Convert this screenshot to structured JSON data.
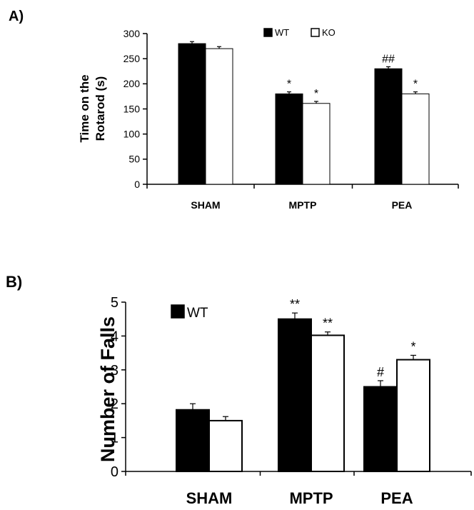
{
  "chart_data": [
    {
      "type": "bar",
      "panel_label": "A)",
      "categories": [
        "SHAM",
        "MPTP",
        "PEA"
      ],
      "series": [
        {
          "name": "WT",
          "color": "#000000",
          "values": [
            280,
            180,
            230
          ],
          "errors": [
            4,
            4,
            4
          ],
          "annotations": [
            "",
            "*",
            "##"
          ]
        },
        {
          "name": "KO",
          "color": "#ffffff",
          "values": [
            270,
            161,
            180
          ],
          "errors": [
            4,
            4,
            4
          ],
          "annotations": [
            "",
            "*",
            "*"
          ]
        }
      ],
      "ylabel_lines": [
        "Time on the",
        "Rotarod (s)"
      ],
      "ylim": [
        0,
        300
      ],
      "yticks": [
        0,
        50,
        100,
        150,
        200,
        250,
        300
      ],
      "grid": false,
      "legend_position": "top-center"
    },
    {
      "type": "bar",
      "panel_label": "B)",
      "categories": [
        "SHAM",
        "MPTP",
        "PEA"
      ],
      "series": [
        {
          "name": "WT",
          "color": "#000000",
          "values": [
            1.82,
            4.5,
            2.5
          ],
          "errors": [
            0.18,
            0.18,
            0.18
          ],
          "annotations": [
            "",
            "**",
            "#"
          ]
        },
        {
          "name": "",
          "color": "#ffffff",
          "values": [
            1.5,
            4.02,
            3.3
          ],
          "errors": [
            0.12,
            0.1,
            0.13
          ],
          "annotations": [
            "",
            "**",
            "*"
          ]
        }
      ],
      "ylabel": "Number of Falls",
      "ylim": [
        0,
        5
      ],
      "yticks": [
        0,
        1,
        2,
        3,
        4,
        5
      ],
      "grid": false,
      "legend_position": "top-left"
    }
  ]
}
